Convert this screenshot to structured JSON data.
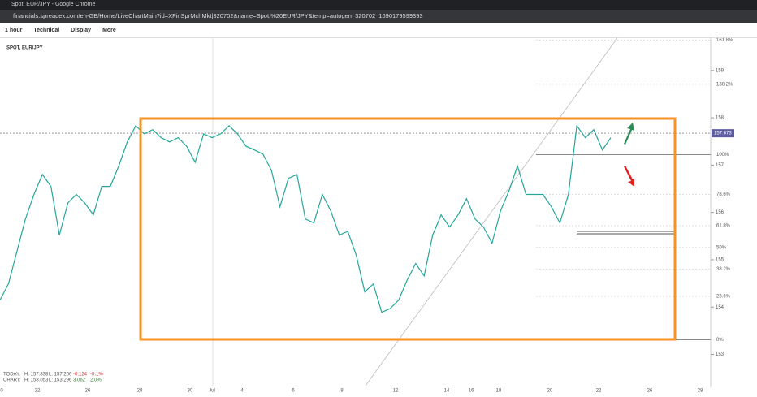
{
  "browser": {
    "tab_title": "Spot, EUR/JPY - Google Chrome",
    "url": "financials.spreadex.com/en-GB/Home/LiveChartMain?id=XFinSprMchMkt|320702&name=Spot.%20EUR/JPY&temp=autogen_320702_1690179599393"
  },
  "toolbar": {
    "menus": [
      "1 hour",
      "Technical",
      "Display",
      "More"
    ]
  },
  "chart_data": {
    "type": "line",
    "title": "SPOT, EUR/JPY",
    "color": "#26a69a",
    "values": [
      154.15,
      154.49,
      155.18,
      155.86,
      156.38,
      156.8,
      156.55,
      155.52,
      156.2,
      156.38,
      156.2,
      155.95,
      156.55,
      156.55,
      156.98,
      157.49,
      157.83,
      157.66,
      157.75,
      157.58,
      157.49,
      157.58,
      157.4,
      157.06,
      157.66,
      157.58,
      157.66,
      157.83,
      157.66,
      157.4,
      157.32,
      157.23,
      156.89,
      156.12,
      156.72,
      156.8,
      155.86,
      155.78,
      156.38,
      156.03,
      155.52,
      155.6,
      155.09,
      154.32,
      154.49,
      153.89,
      153.97,
      154.15,
      154.57,
      154.92,
      154.66,
      155.52,
      155.95,
      155.69,
      155.95,
      156.29,
      155.86,
      155.69,
      155.35,
      156.03,
      156.46,
      156.98,
      156.38,
      156.38,
      156.38,
      156.12,
      155.78,
      156.38,
      157.83,
      157.58,
      157.75,
      157.32,
      157.58
    ],
    "ylim": [
      152.34,
      159.7
    ],
    "yticks": [
      153,
      154,
      155,
      156,
      157,
      158,
      159
    ],
    "x_labels": [
      "0",
      "22",
      "26",
      "28",
      "30",
      "Jul",
      "4",
      "6",
      "8",
      "12",
      "14",
      "16",
      "18",
      "20",
      "22",
      "26",
      "28"
    ],
    "current_price": 157.673,
    "fib_levels": [
      {
        "label": "161.8%",
        "value": 159.64
      },
      {
        "label": "138.2%",
        "value": 158.71
      },
      {
        "label": "100%",
        "value": 157.22
      },
      {
        "label": "78.6%",
        "value": 156.38
      },
      {
        "label": "61.8%",
        "value": 155.72
      },
      {
        "label": "50%",
        "value": 155.26
      },
      {
        "label": "38.2%",
        "value": 154.8
      },
      {
        "label": "23.6%",
        "value": 154.23
      },
      {
        "label": "0%",
        "value": 153.31
      }
    ]
  },
  "stats": {
    "today": {
      "label": "TODAY:",
      "high": "H: 157.838",
      "low": "L: 157.206",
      "change": "-0.124",
      "change_pct": "-0.1%"
    },
    "chart": {
      "label": "CHART:",
      "high": "H: 158.053",
      "low": "L: 153.296",
      "change": "3.062",
      "change_pct": "2.0%"
    }
  }
}
